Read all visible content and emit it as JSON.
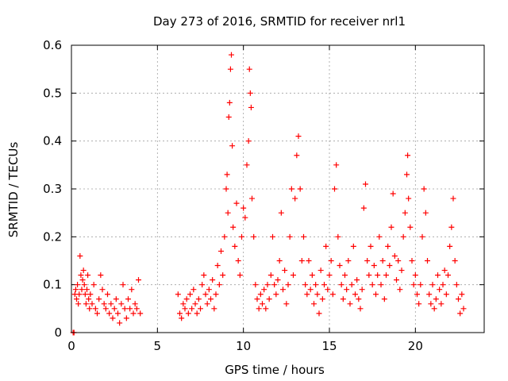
{
  "chart_data": {
    "type": "scatter",
    "title": "Day 273 of 2016, SRMTID for receiver nrl1",
    "xlabel": "GPS time / hours",
    "ylabel": "SRMTID / TECUs",
    "xlim": [
      0,
      24
    ],
    "ylim": [
      0,
      0.6
    ],
    "grid": true,
    "x_ticks": [
      0,
      5,
      10,
      15,
      20
    ],
    "x_tick_labels": [
      "0",
      "5",
      "10",
      "15",
      "20"
    ],
    "y_ticks": [
      0,
      0.1,
      0.2,
      0.3,
      0.4,
      0.5,
      0.6
    ],
    "y_tick_labels": [
      "0",
      "0.1",
      "0.2",
      "0.3",
      "0.4",
      "0.5",
      "0.6"
    ],
    "marker": "+",
    "series": [
      {
        "name": "SRMTID",
        "color": "#ff0000",
        "points": [
          [
            0.1,
            0.0
          ],
          [
            0.15,
            0.0
          ],
          [
            0.2,
            0.08
          ],
          [
            0.25,
            0.09
          ],
          [
            0.3,
            0.07
          ],
          [
            0.35,
            0.1
          ],
          [
            0.4,
            0.06
          ],
          [
            0.45,
            0.08
          ],
          [
            0.5,
            0.16
          ],
          [
            0.55,
            0.12
          ],
          [
            0.6,
            0.09
          ],
          [
            0.65,
            0.11
          ],
          [
            0.7,
            0.13
          ],
          [
            0.75,
            0.1
          ],
          [
            0.8,
            0.08
          ],
          [
            0.85,
            0.06
          ],
          [
            0.9,
            0.09
          ],
          [
            0.95,
            0.12
          ],
          [
            1.0,
            0.07
          ],
          [
            1.05,
            0.05
          ],
          [
            1.1,
            0.08
          ],
          [
            1.2,
            0.06
          ],
          [
            1.3,
            0.1
          ],
          [
            1.4,
            0.05
          ],
          [
            1.5,
            0.04
          ],
          [
            1.6,
            0.07
          ],
          [
            1.7,
            0.12
          ],
          [
            1.8,
            0.09
          ],
          [
            1.9,
            0.06
          ],
          [
            2.0,
            0.05
          ],
          [
            2.1,
            0.08
          ],
          [
            2.2,
            0.04
          ],
          [
            2.3,
            0.06
          ],
          [
            2.4,
            0.03
          ],
          [
            2.5,
            0.05
          ],
          [
            2.6,
            0.07
          ],
          [
            2.7,
            0.04
          ],
          [
            2.8,
            0.02
          ],
          [
            2.9,
            0.06
          ],
          [
            3.0,
            0.1
          ],
          [
            3.1,
            0.05
          ],
          [
            3.2,
            0.03
          ],
          [
            3.3,
            0.07
          ],
          [
            3.4,
            0.05
          ],
          [
            3.5,
            0.09
          ],
          [
            3.6,
            0.04
          ],
          [
            3.7,
            0.06
          ],
          [
            3.8,
            0.05
          ],
          [
            3.9,
            0.11
          ],
          [
            4.0,
            0.04
          ],
          [
            6.2,
            0.08
          ],
          [
            6.3,
            0.04
          ],
          [
            6.4,
            0.03
          ],
          [
            6.5,
            0.06
          ],
          [
            6.6,
            0.05
          ],
          [
            6.7,
            0.07
          ],
          [
            6.8,
            0.04
          ],
          [
            6.9,
            0.08
          ],
          [
            7.0,
            0.05
          ],
          [
            7.1,
            0.09
          ],
          [
            7.2,
            0.06
          ],
          [
            7.3,
            0.04
          ],
          [
            7.4,
            0.07
          ],
          [
            7.5,
            0.05
          ],
          [
            7.6,
            0.1
          ],
          [
            7.7,
            0.12
          ],
          [
            7.8,
            0.08
          ],
          [
            7.9,
            0.06
          ],
          [
            8.0,
            0.09
          ],
          [
            8.1,
            0.07
          ],
          [
            8.2,
            0.11
          ],
          [
            8.3,
            0.05
          ],
          [
            8.4,
            0.08
          ],
          [
            8.5,
            0.14
          ],
          [
            8.6,
            0.1
          ],
          [
            8.7,
            0.17
          ],
          [
            8.8,
            0.12
          ],
          [
            8.9,
            0.2
          ],
          [
            9.0,
            0.3
          ],
          [
            9.05,
            0.33
          ],
          [
            9.1,
            0.25
          ],
          [
            9.15,
            0.45
          ],
          [
            9.2,
            0.48
          ],
          [
            9.25,
            0.55
          ],
          [
            9.3,
            0.58
          ],
          [
            9.35,
            0.39
          ],
          [
            9.4,
            0.22
          ],
          [
            9.5,
            0.18
          ],
          [
            9.6,
            0.27
          ],
          [
            9.7,
            0.15
          ],
          [
            9.8,
            0.12
          ],
          [
            9.9,
            0.2
          ],
          [
            10.0,
            0.26
          ],
          [
            10.1,
            0.24
          ],
          [
            10.2,
            0.35
          ],
          [
            10.3,
            0.4
          ],
          [
            10.35,
            0.55
          ],
          [
            10.4,
            0.5
          ],
          [
            10.45,
            0.47
          ],
          [
            10.5,
            0.28
          ],
          [
            10.6,
            0.2
          ],
          [
            10.7,
            0.1
          ],
          [
            10.8,
            0.07
          ],
          [
            10.9,
            0.05
          ],
          [
            11.0,
            0.08
          ],
          [
            11.1,
            0.06
          ],
          [
            11.2,
            0.09
          ],
          [
            11.3,
            0.05
          ],
          [
            11.4,
            0.1
          ],
          [
            11.5,
            0.07
          ],
          [
            11.6,
            0.12
          ],
          [
            11.7,
            0.2
          ],
          [
            11.8,
            0.1
          ],
          [
            11.9,
            0.08
          ],
          [
            12.0,
            0.11
          ],
          [
            12.1,
            0.15
          ],
          [
            12.2,
            0.25
          ],
          [
            12.3,
            0.09
          ],
          [
            12.4,
            0.13
          ],
          [
            12.5,
            0.06
          ],
          [
            12.6,
            0.1
          ],
          [
            12.7,
            0.2
          ],
          [
            12.8,
            0.3
          ],
          [
            12.9,
            0.12
          ],
          [
            13.0,
            0.28
          ],
          [
            13.1,
            0.37
          ],
          [
            13.2,
            0.41
          ],
          [
            13.3,
            0.3
          ],
          [
            13.4,
            0.15
          ],
          [
            13.5,
            0.2
          ],
          [
            13.6,
            0.1
          ],
          [
            13.7,
            0.08
          ],
          [
            13.8,
            0.15
          ],
          [
            13.9,
            0.09
          ],
          [
            14.0,
            0.12
          ],
          [
            14.1,
            0.06
          ],
          [
            14.2,
            0.1
          ],
          [
            14.3,
            0.08
          ],
          [
            14.4,
            0.04
          ],
          [
            14.5,
            0.13
          ],
          [
            14.6,
            0.07
          ],
          [
            14.7,
            0.1
          ],
          [
            14.8,
            0.18
          ],
          [
            14.9,
            0.09
          ],
          [
            15.0,
            0.12
          ],
          [
            15.1,
            0.15
          ],
          [
            15.2,
            0.08
          ],
          [
            15.3,
            0.3
          ],
          [
            15.4,
            0.35
          ],
          [
            15.5,
            0.2
          ],
          [
            15.6,
            0.14
          ],
          [
            15.7,
            0.1
          ],
          [
            15.8,
            0.07
          ],
          [
            15.9,
            0.12
          ],
          [
            16.0,
            0.09
          ],
          [
            16.1,
            0.15
          ],
          [
            16.2,
            0.06
          ],
          [
            16.3,
            0.1
          ],
          [
            16.4,
            0.18
          ],
          [
            16.5,
            0.08
          ],
          [
            16.6,
            0.11
          ],
          [
            16.7,
            0.07
          ],
          [
            16.8,
            0.05
          ],
          [
            16.9,
            0.09
          ],
          [
            17.0,
            0.26
          ],
          [
            17.1,
            0.31
          ],
          [
            17.2,
            0.15
          ],
          [
            17.3,
            0.12
          ],
          [
            17.4,
            0.18
          ],
          [
            17.5,
            0.1
          ],
          [
            17.6,
            0.14
          ],
          [
            17.7,
            0.08
          ],
          [
            17.8,
            0.12
          ],
          [
            17.9,
            0.2
          ],
          [
            18.0,
            0.1
          ],
          [
            18.1,
            0.15
          ],
          [
            18.2,
            0.07
          ],
          [
            18.3,
            0.12
          ],
          [
            18.4,
            0.18
          ],
          [
            18.5,
            0.14
          ],
          [
            18.6,
            0.22
          ],
          [
            18.7,
            0.29
          ],
          [
            18.8,
            0.16
          ],
          [
            18.9,
            0.11
          ],
          [
            19.0,
            0.15
          ],
          [
            19.1,
            0.09
          ],
          [
            19.2,
            0.13
          ],
          [
            19.3,
            0.2
          ],
          [
            19.4,
            0.25
          ],
          [
            19.5,
            0.33
          ],
          [
            19.55,
            0.37
          ],
          [
            19.6,
            0.28
          ],
          [
            19.7,
            0.22
          ],
          [
            19.8,
            0.15
          ],
          [
            19.9,
            0.1
          ],
          [
            20.0,
            0.12
          ],
          [
            20.1,
            0.08
          ],
          [
            20.2,
            0.06
          ],
          [
            20.3,
            0.1
          ],
          [
            20.4,
            0.2
          ],
          [
            20.5,
            0.3
          ],
          [
            20.6,
            0.25
          ],
          [
            20.7,
            0.15
          ],
          [
            20.8,
            0.08
          ],
          [
            20.9,
            0.06
          ],
          [
            21.0,
            0.1
          ],
          [
            21.1,
            0.05
          ],
          [
            21.2,
            0.07
          ],
          [
            21.3,
            0.12
          ],
          [
            21.4,
            0.09
          ],
          [
            21.5,
            0.06
          ],
          [
            21.6,
            0.1
          ],
          [
            21.7,
            0.13
          ],
          [
            21.8,
            0.08
          ],
          [
            21.9,
            0.12
          ],
          [
            22.0,
            0.18
          ],
          [
            22.1,
            0.22
          ],
          [
            22.2,
            0.28
          ],
          [
            22.3,
            0.15
          ],
          [
            22.4,
            0.1
          ],
          [
            22.5,
            0.07
          ],
          [
            22.6,
            0.04
          ],
          [
            22.7,
            0.08
          ],
          [
            22.8,
            0.05
          ]
        ]
      }
    ]
  }
}
